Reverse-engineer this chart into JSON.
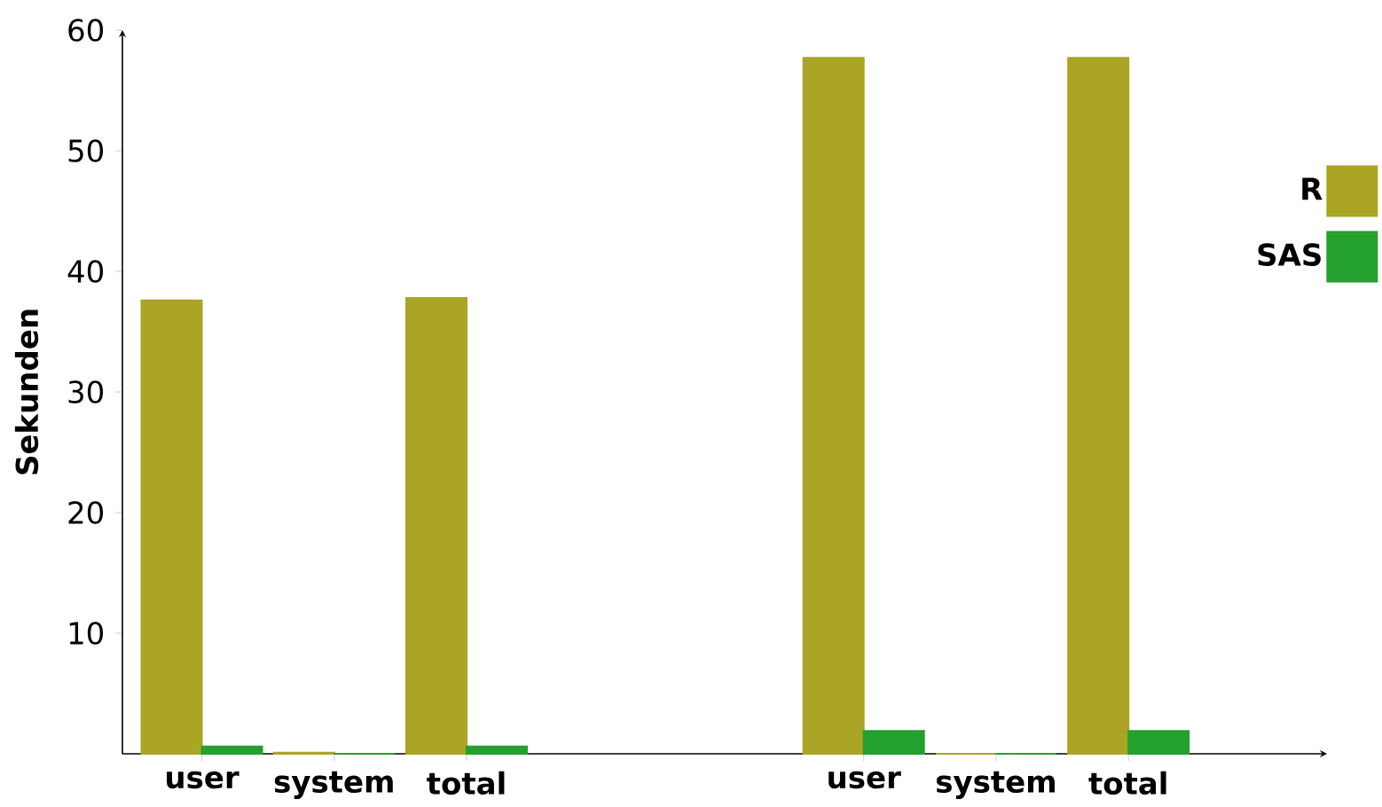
{
  "chart_data": {
    "type": "bar",
    "ylabel": "Sekunden",
    "categories": [
      "user",
      "system",
      "total",
      null,
      null,
      "user",
      "system",
      "total"
    ],
    "series": [
      {
        "name": "R",
        "color": "#aaa524",
        "values": [
          37.6,
          0.1,
          37.8,
          null,
          null,
          57.7,
          0,
          57.7
        ]
      },
      {
        "name": "SAS",
        "color": "#24a02e",
        "values": [
          0.6,
          0,
          0.6,
          null,
          null,
          1.9,
          0,
          1.9
        ]
      }
    ],
    "ylim": [
      0,
      60
    ],
    "yticks": [
      10,
      20,
      30,
      40,
      50,
      60
    ],
    "legend": "top right"
  }
}
